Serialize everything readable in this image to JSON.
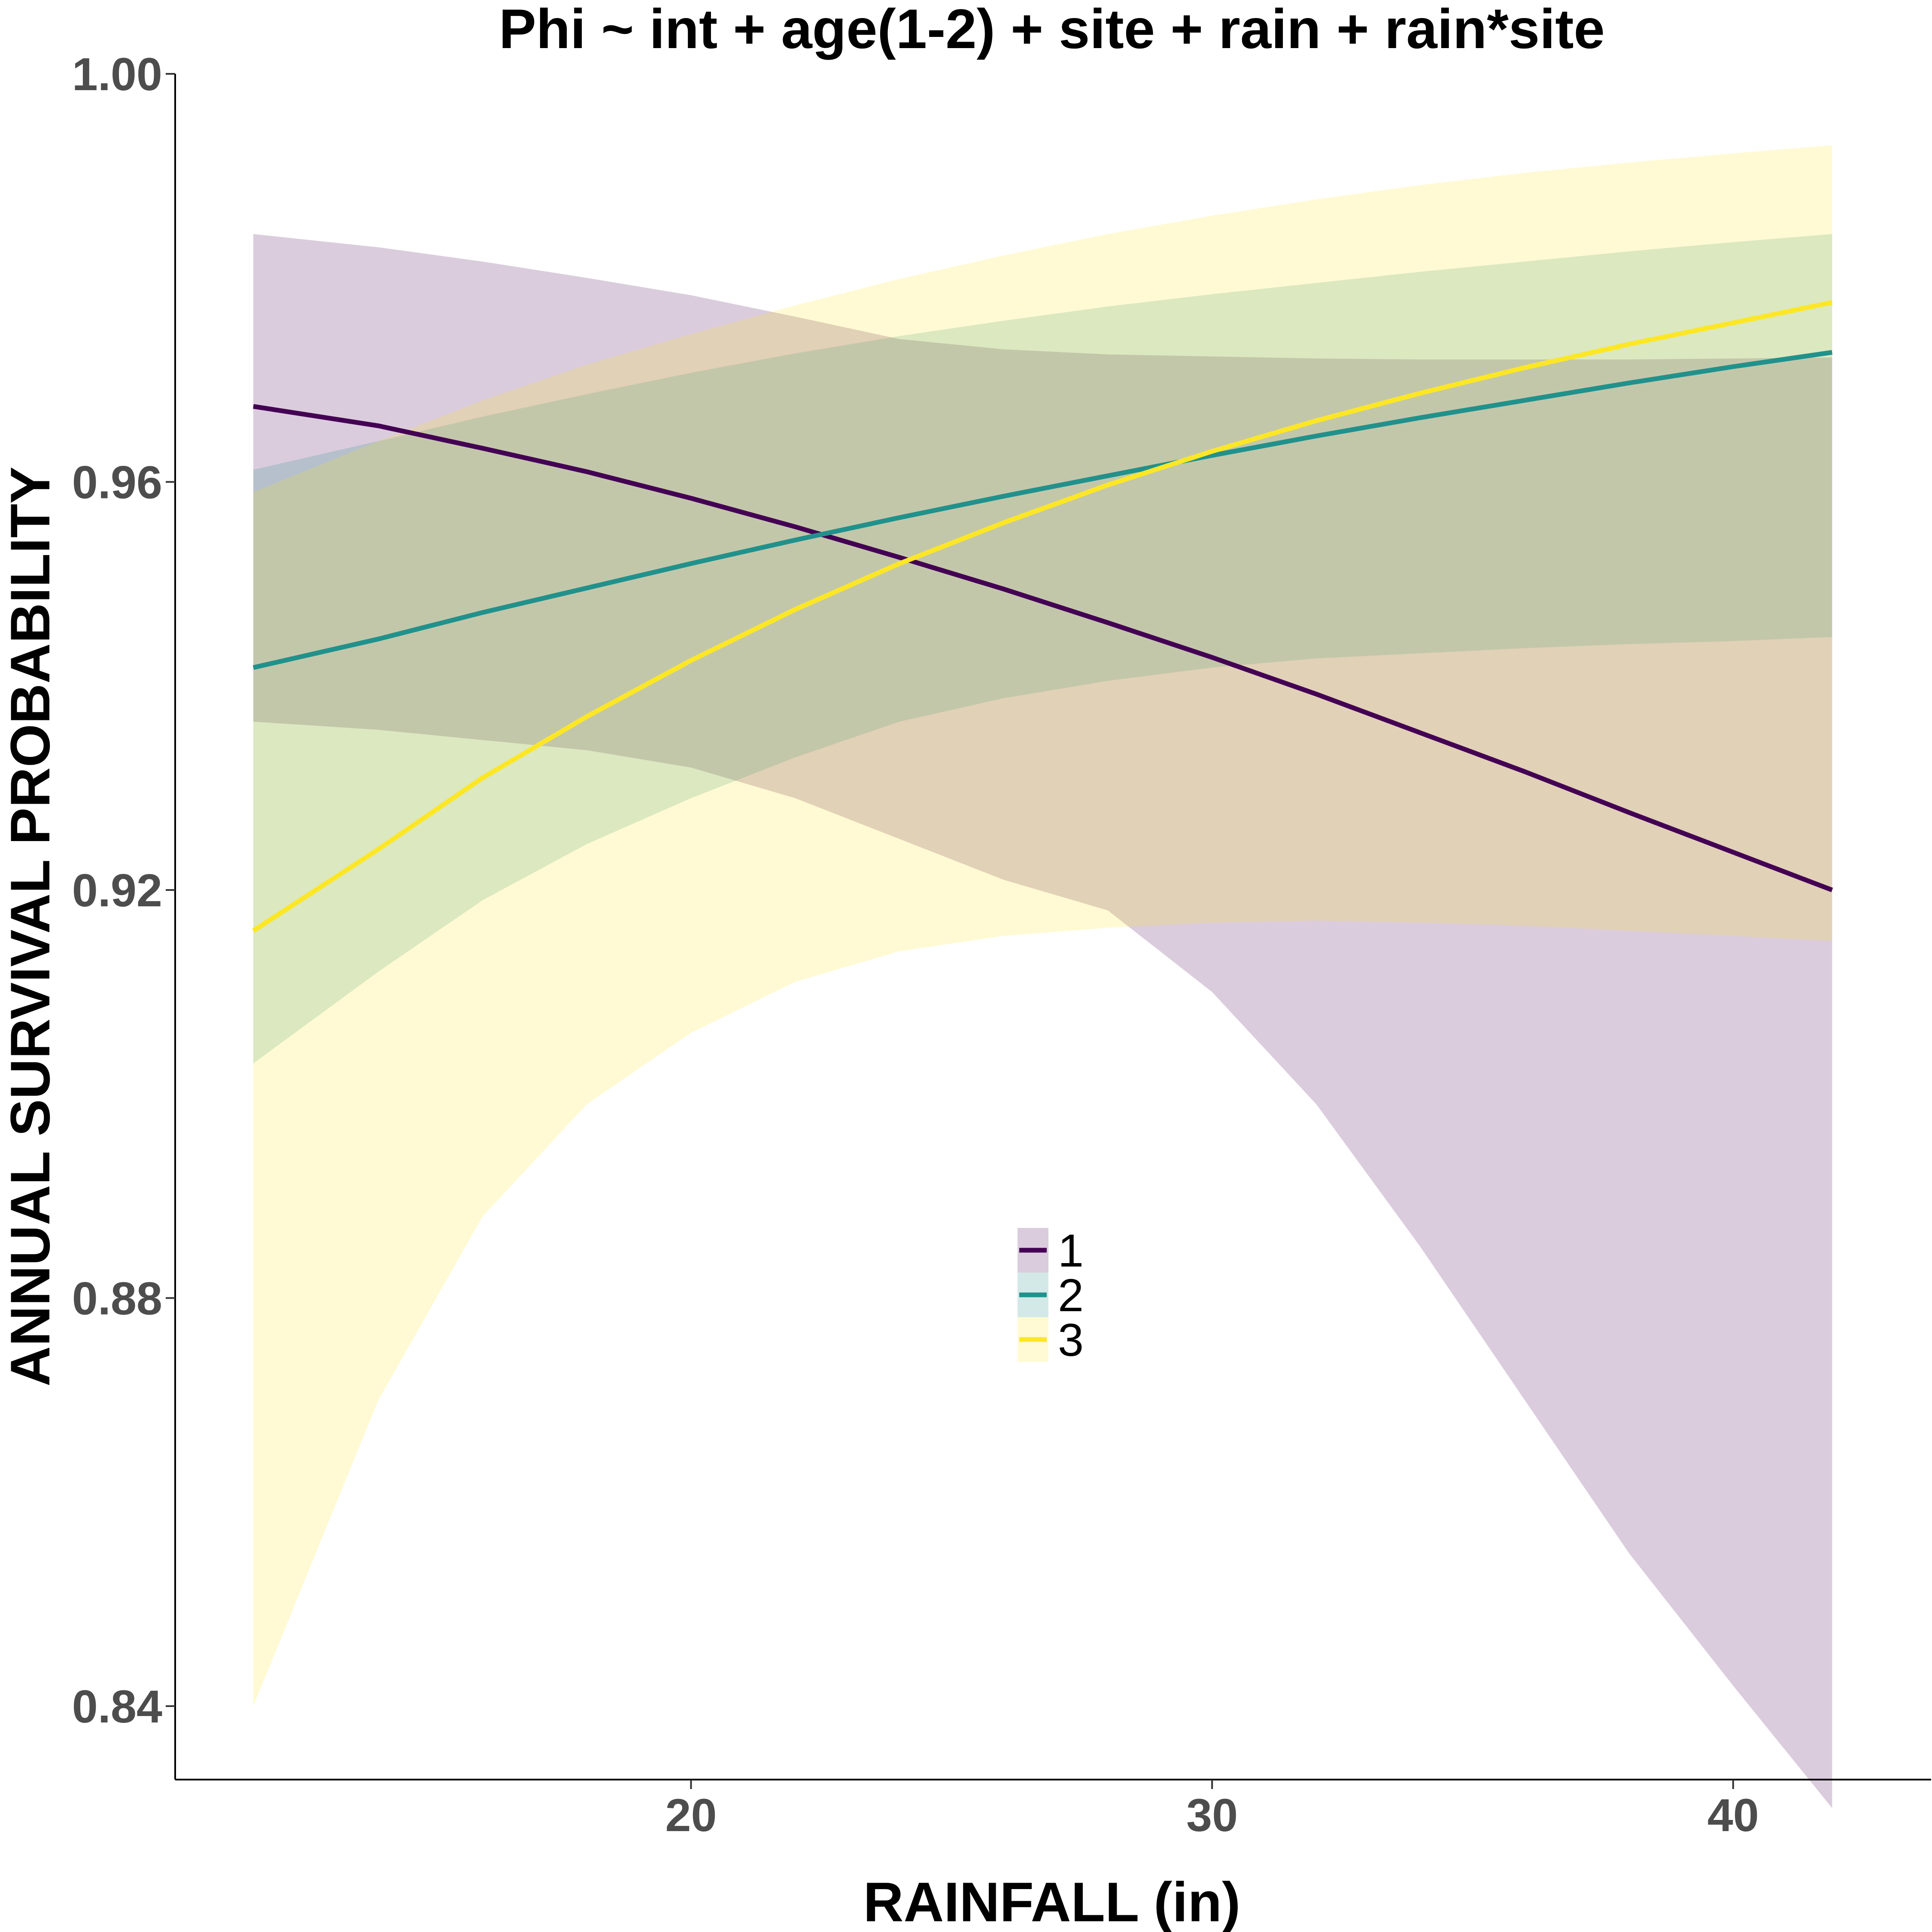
{
  "chart_data": {
    "type": "line",
    "title": "Phi ~ int + age(1-2) + site + rain + rain*site",
    "xlabel": "RAINFALL (in)",
    "ylabel": "ANNUAL SURVIVAL PROBABILITY",
    "xlim": [
      10.1,
      43.8
    ],
    "ylim": [
      0.8328,
      1.0
    ],
    "x_ticks": [
      20,
      30,
      40
    ],
    "x_tick_labels": [
      "20",
      "30",
      "40"
    ],
    "y_ticks": [
      0.84,
      0.88,
      0.92,
      0.96,
      1.0
    ],
    "y_tick_labels": [
      "0.84",
      "0.88",
      "0.92",
      "0.96",
      "1.00"
    ],
    "grid": false,
    "legend_position": "center",
    "x": [
      11.6,
      14,
      16,
      18,
      20,
      22,
      24,
      26,
      28,
      30,
      32,
      34,
      36,
      38,
      40,
      41.9
    ],
    "series": [
      {
        "name": "1",
        "color": "#440154",
        "fill": "#440154",
        "values": [
          0.9674,
          0.9655,
          0.9633,
          0.961,
          0.9584,
          0.9556,
          0.9526,
          0.9495,
          0.9462,
          0.9428,
          0.9392,
          0.9354,
          0.9316,
          0.9276,
          0.9237,
          0.92
        ],
        "lower": [
          0.9365,
          0.9357,
          0.9347,
          0.9337,
          0.932,
          0.929,
          0.925,
          0.921,
          0.918,
          0.91,
          0.899,
          0.885,
          0.87,
          0.855,
          0.842,
          0.83
        ],
        "upper": [
          0.9843,
          0.983,
          0.9816,
          0.98,
          0.9783,
          0.9762,
          0.974,
          0.973,
          0.9725,
          0.9723,
          0.9721,
          0.972,
          0.972,
          0.972,
          0.9721,
          0.9722
        ]
      },
      {
        "name": "2",
        "color": "#21918c",
        "fill": "#21918c",
        "values": [
          0.9418,
          0.9446,
          0.9472,
          0.9496,
          0.952,
          0.9543,
          0.9565,
          0.9586,
          0.9606,
          0.9626,
          0.9645,
          0.9663,
          0.968,
          0.9697,
          0.9713,
          0.9727
        ],
        "lower": [
          0.903,
          0.912,
          0.919,
          0.9245,
          0.929,
          0.933,
          0.9365,
          0.9388,
          0.9405,
          0.9418,
          0.9427,
          0.9432,
          0.9437,
          0.9441,
          0.9444,
          0.9448
        ],
        "upper": [
          0.9612,
          0.964,
          0.9664,
          0.9686,
          0.9707,
          0.9726,
          0.9743,
          0.9758,
          0.9772,
          0.9784,
          0.9795,
          0.9806,
          0.9816,
          0.9826,
          0.9835,
          0.9843
        ]
      },
      {
        "name": "3",
        "color": "#fde725",
        "fill": "#fde725",
        "values": [
          0.916,
          0.924,
          0.931,
          0.937,
          0.9425,
          0.9475,
          0.952,
          0.956,
          0.9597,
          0.963,
          0.966,
          0.9687,
          0.9712,
          0.9735,
          0.9756,
          0.9776
        ],
        "lower": [
          0.84,
          0.87,
          0.888,
          0.899,
          0.906,
          0.911,
          0.914,
          0.9155,
          0.9163,
          0.9168,
          0.917,
          0.9168,
          0.9165,
          0.916,
          0.9155,
          0.915
        ],
        "upper": [
          0.959,
          0.964,
          0.968,
          0.9715,
          0.9745,
          0.9773,
          0.9799,
          0.9822,
          0.9843,
          0.9861,
          0.9877,
          0.9891,
          0.9903,
          0.9913,
          0.9922,
          0.993
        ]
      }
    ]
  }
}
